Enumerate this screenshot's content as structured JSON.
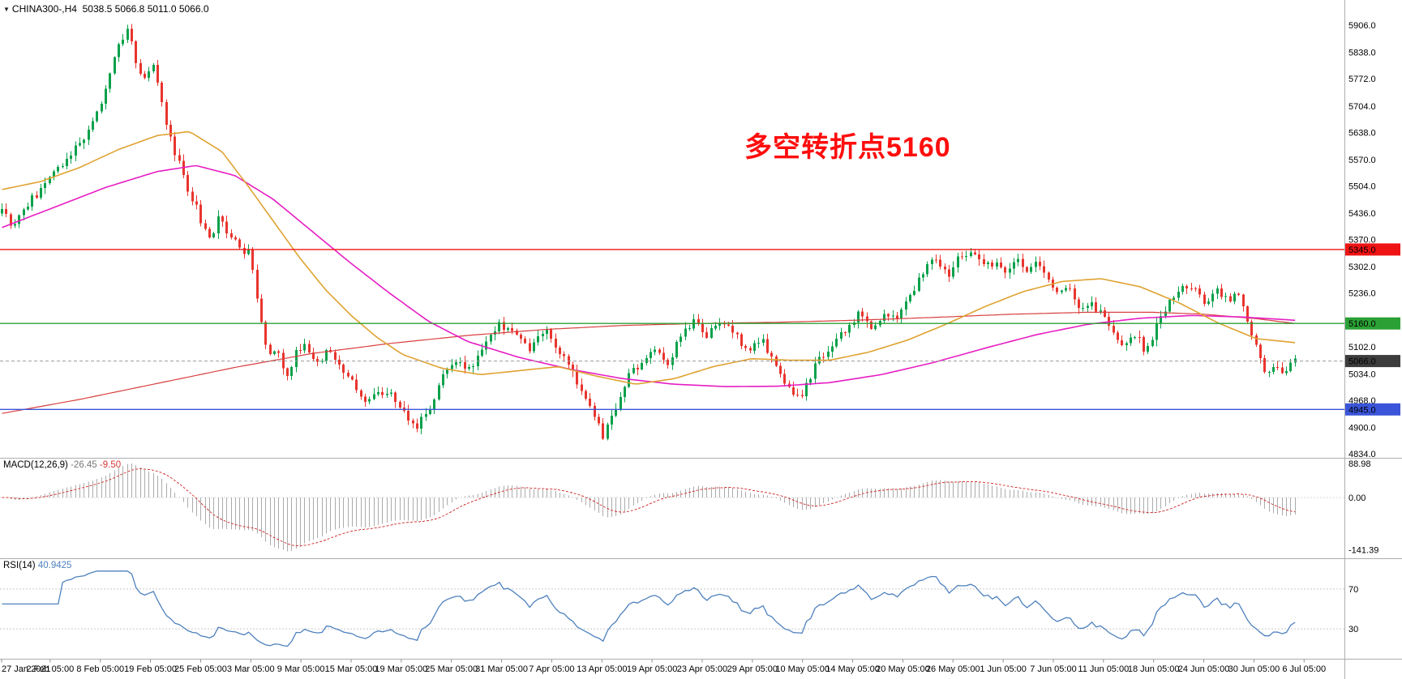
{
  "header": {
    "dropdown_icon": "▼",
    "symbol_ohlc": "CHINA300-,H4  5038.5 5066.8 5011.0 5066.0"
  },
  "annotation": {
    "text": "多空转折点5160"
  },
  "indicators": {
    "macd": {
      "title": "MACD(12,26,9)",
      "value_main": "-26.45",
      "value_signal": "-9.50"
    },
    "rsi": {
      "title": "RSI(14)",
      "value": "40.9425"
    }
  },
  "chart_data": {
    "type": "candlestick",
    "symbol": "CHINA300-",
    "timeframe": "H4",
    "current_bar": {
      "open": 5038.5,
      "high": 5066.8,
      "low": 5011.0,
      "close": 5066.0
    },
    "bar_count": 300,
    "price_axis": {
      "ticks": [
        5906,
        5838,
        5772,
        5704,
        5638,
        5570,
        5504,
        5436,
        5370,
        5302,
        5236,
        5168,
        5102,
        5034,
        4968,
        4900,
        4834
      ],
      "range": [
        4824,
        5969
      ]
    },
    "time_axis": [
      "27 Jan 2021",
      "2 Feb 05:00",
      "8 Feb 05:00",
      "19 Feb 05:00",
      "25 Feb 05:00",
      "3 Mar 05:00",
      "9 Mar 05:00",
      "15 Mar 05:00",
      "19 Mar 05:00",
      "25 Mar 05:00",
      "31 Mar 05:00",
      "7 Apr 05:00",
      "13 Apr 05:00",
      "19 Apr 05:00",
      "23 Apr 05:00",
      "29 Apr 05:00",
      "10 May 05:00",
      "14 May 05:00",
      "20 May 05:00",
      "26 May 05:00",
      "1 Jun 05:00",
      "7 Jun 05:00",
      "11 Jun 05:00",
      "18 Jun 05:00",
      "24 Jun 05:00",
      "30 Jun 05:00",
      "6 Jul 05:00"
    ],
    "close_path": [
      [
        0.0,
        5440
      ],
      [
        0.008,
        5410
      ],
      [
        0.018,
        5455
      ],
      [
        0.028,
        5490
      ],
      [
        0.038,
        5520
      ],
      [
        0.048,
        5560
      ],
      [
        0.058,
        5600
      ],
      [
        0.068,
        5650
      ],
      [
        0.077,
        5720
      ],
      [
        0.085,
        5800
      ],
      [
        0.092,
        5870
      ],
      [
        0.098,
        5900
      ],
      [
        0.104,
        5810
      ],
      [
        0.11,
        5770
      ],
      [
        0.116,
        5820
      ],
      [
        0.122,
        5740
      ],
      [
        0.13,
        5620
      ],
      [
        0.138,
        5560
      ],
      [
        0.146,
        5480
      ],
      [
        0.154,
        5420
      ],
      [
        0.161,
        5370
      ],
      [
        0.168,
        5430
      ],
      [
        0.176,
        5380
      ],
      [
        0.184,
        5350
      ],
      [
        0.192,
        5330
      ],
      [
        0.199,
        5200
      ],
      [
        0.206,
        5070
      ],
      [
        0.213,
        5110
      ],
      [
        0.22,
        5020
      ],
      [
        0.227,
        5080
      ],
      [
        0.235,
        5120
      ],
      [
        0.243,
        5050
      ],
      [
        0.252,
        5090
      ],
      [
        0.262,
        5040
      ],
      [
        0.272,
        5010
      ],
      [
        0.282,
        4960
      ],
      [
        0.292,
        4990
      ],
      [
        0.3,
        4980
      ],
      [
        0.312,
        4930
      ],
      [
        0.322,
        4900
      ],
      [
        0.332,
        4960
      ],
      [
        0.342,
        5030
      ],
      [
        0.352,
        5060
      ],
      [
        0.362,
        5050
      ],
      [
        0.372,
        5090
      ],
      [
        0.385,
        5160
      ],
      [
        0.395,
        5130
      ],
      [
        0.408,
        5100
      ],
      [
        0.42,
        5140
      ],
      [
        0.432,
        5080
      ],
      [
        0.444,
        5020
      ],
      [
        0.455,
        4960
      ],
      [
        0.465,
        4870
      ],
      [
        0.474,
        4940
      ],
      [
        0.484,
        5020
      ],
      [
        0.494,
        5060
      ],
      [
        0.504,
        5090
      ],
      [
        0.514,
        5060
      ],
      [
        0.524,
        5120
      ],
      [
        0.534,
        5170
      ],
      [
        0.544,
        5130
      ],
      [
        0.554,
        5170
      ],
      [
        0.564,
        5140
      ],
      [
        0.577,
        5100
      ],
      [
        0.588,
        5120
      ],
      [
        0.598,
        5060
      ],
      [
        0.608,
        5000
      ],
      [
        0.618,
        4975
      ],
      [
        0.628,
        5050
      ],
      [
        0.64,
        5100
      ],
      [
        0.652,
        5140
      ],
      [
        0.662,
        5180
      ],
      [
        0.672,
        5150
      ],
      [
        0.682,
        5180
      ],
      [
        0.692,
        5170
      ],
      [
        0.702,
        5230
      ],
      [
        0.712,
        5290
      ],
      [
        0.722,
        5320
      ],
      [
        0.731,
        5280
      ],
      [
        0.74,
        5330
      ],
      [
        0.75,
        5345
      ],
      [
        0.758,
        5295
      ],
      [
        0.769,
        5310
      ],
      [
        0.776,
        5280
      ],
      [
        0.784,
        5330
      ],
      [
        0.792,
        5290
      ],
      [
        0.8,
        5320
      ],
      [
        0.808,
        5280
      ],
      [
        0.816,
        5230
      ],
      [
        0.824,
        5260
      ],
      [
        0.832,
        5210
      ],
      [
        0.846,
        5200
      ],
      [
        0.856,
        5150
      ],
      [
        0.866,
        5100
      ],
      [
        0.876,
        5130
      ],
      [
        0.885,
        5090
      ],
      [
        0.893,
        5150
      ],
      [
        0.901,
        5200
      ],
      [
        0.91,
        5240
      ],
      [
        0.923,
        5250
      ],
      [
        0.931,
        5210
      ],
      [
        0.939,
        5240
      ],
      [
        0.948,
        5220
      ],
      [
        0.956,
        5230
      ],
      [
        0.962,
        5180
      ],
      [
        0.97,
        5100
      ],
      [
        0.978,
        5040
      ],
      [
        0.986,
        5060
      ],
      [
        0.993,
        5035
      ],
      [
        1.0,
        5066
      ]
    ],
    "moving_averages": [
      {
        "name": "slow-ma-red",
        "color": "#d94040",
        "width": 1.2,
        "path": [
          [
            0,
            4935
          ],
          [
            0.06,
            4970
          ],
          [
            0.12,
            5010
          ],
          [
            0.18,
            5050
          ],
          [
            0.24,
            5085
          ],
          [
            0.3,
            5110
          ],
          [
            0.36,
            5130
          ],
          [
            0.42,
            5145
          ],
          [
            0.48,
            5155
          ],
          [
            0.54,
            5160
          ],
          [
            0.6,
            5163
          ],
          [
            0.66,
            5168
          ],
          [
            0.72,
            5175
          ],
          [
            0.78,
            5183
          ],
          [
            0.84,
            5188
          ],
          [
            0.89,
            5188
          ],
          [
            0.93,
            5183
          ],
          [
            0.97,
            5172
          ],
          [
            1,
            5160
          ]
        ]
      },
      {
        "name": "mid-ma-magenta",
        "color": "#e61ec3",
        "width": 1.6,
        "path": [
          [
            0,
            5400
          ],
          [
            0.04,
            5450
          ],
          [
            0.08,
            5500
          ],
          [
            0.12,
            5540
          ],
          [
            0.15,
            5555
          ],
          [
            0.18,
            5530
          ],
          [
            0.21,
            5470
          ],
          [
            0.24,
            5390
          ],
          [
            0.27,
            5310
          ],
          [
            0.3,
            5235
          ],
          [
            0.33,
            5165
          ],
          [
            0.36,
            5115
          ],
          [
            0.4,
            5075
          ],
          [
            0.44,
            5045
          ],
          [
            0.48,
            5022
          ],
          [
            0.52,
            5008
          ],
          [
            0.56,
            5002
          ],
          [
            0.6,
            5003
          ],
          [
            0.64,
            5012
          ],
          [
            0.68,
            5032
          ],
          [
            0.72,
            5062
          ],
          [
            0.76,
            5098
          ],
          [
            0.8,
            5132
          ],
          [
            0.84,
            5158
          ],
          [
            0.88,
            5173
          ],
          [
            0.92,
            5180
          ],
          [
            0.96,
            5176
          ],
          [
            1,
            5168
          ]
        ]
      },
      {
        "name": "fast-ma-gold",
        "color": "#dfa231",
        "width": 1.6,
        "path": [
          [
            0,
            5495
          ],
          [
            0.03,
            5515
          ],
          [
            0.06,
            5550
          ],
          [
            0.09,
            5595
          ],
          [
            0.12,
            5630
          ],
          [
            0.145,
            5640
          ],
          [
            0.17,
            5590
          ],
          [
            0.19,
            5505
          ],
          [
            0.21,
            5415
          ],
          [
            0.23,
            5325
          ],
          [
            0.25,
            5245
          ],
          [
            0.27,
            5180
          ],
          [
            0.29,
            5125
          ],
          [
            0.31,
            5082
          ],
          [
            0.34,
            5048
          ],
          [
            0.37,
            5032
          ],
          [
            0.4,
            5042
          ],
          [
            0.43,
            5052
          ],
          [
            0.46,
            5028
          ],
          [
            0.49,
            5008
          ],
          [
            0.52,
            5022
          ],
          [
            0.55,
            5052
          ],
          [
            0.58,
            5072
          ],
          [
            0.61,
            5068
          ],
          [
            0.64,
            5068
          ],
          [
            0.67,
            5088
          ],
          [
            0.7,
            5118
          ],
          [
            0.73,
            5158
          ],
          [
            0.76,
            5202
          ],
          [
            0.79,
            5240
          ],
          [
            0.82,
            5265
          ],
          [
            0.85,
            5272
          ],
          [
            0.88,
            5252
          ],
          [
            0.91,
            5212
          ],
          [
            0.94,
            5162
          ],
          [
            0.97,
            5122
          ],
          [
            1,
            5112
          ]
        ]
      }
    ],
    "hlines": [
      {
        "value": 5345.0,
        "color": "#ef1414",
        "label": "5345.0"
      },
      {
        "value": 5160.0,
        "color": "#2ba135",
        "label": "5160.0"
      },
      {
        "value": 4945.0,
        "color": "#3a55d9",
        "label": "4945.0"
      }
    ],
    "current_price": {
      "value": 5066.0,
      "label": "5066.0",
      "line_color": "#9a9a9a",
      "badge_color": "#3c3c3c"
    },
    "candle_colors": {
      "up": "#0aa14b",
      "down": "#e8352e"
    },
    "macd_panel": {
      "fast": 12,
      "slow": 26,
      "signal_period": 9,
      "current_main": -26.45,
      "current_signal": -9.5,
      "scale_max": 88.98,
      "scale_zero": 0.0,
      "scale_min": -141.39,
      "range": [
        -160,
        102
      ],
      "hist_color": "#ababab",
      "signal_color": "#d23a3a"
    },
    "rsi_panel": {
      "period": 14,
      "current": 40.9425,
      "levels": [
        70,
        30
      ],
      "range": [
        0,
        100
      ],
      "line_color": "#4e81bd",
      "level_color": "#c9c9c9"
    }
  }
}
